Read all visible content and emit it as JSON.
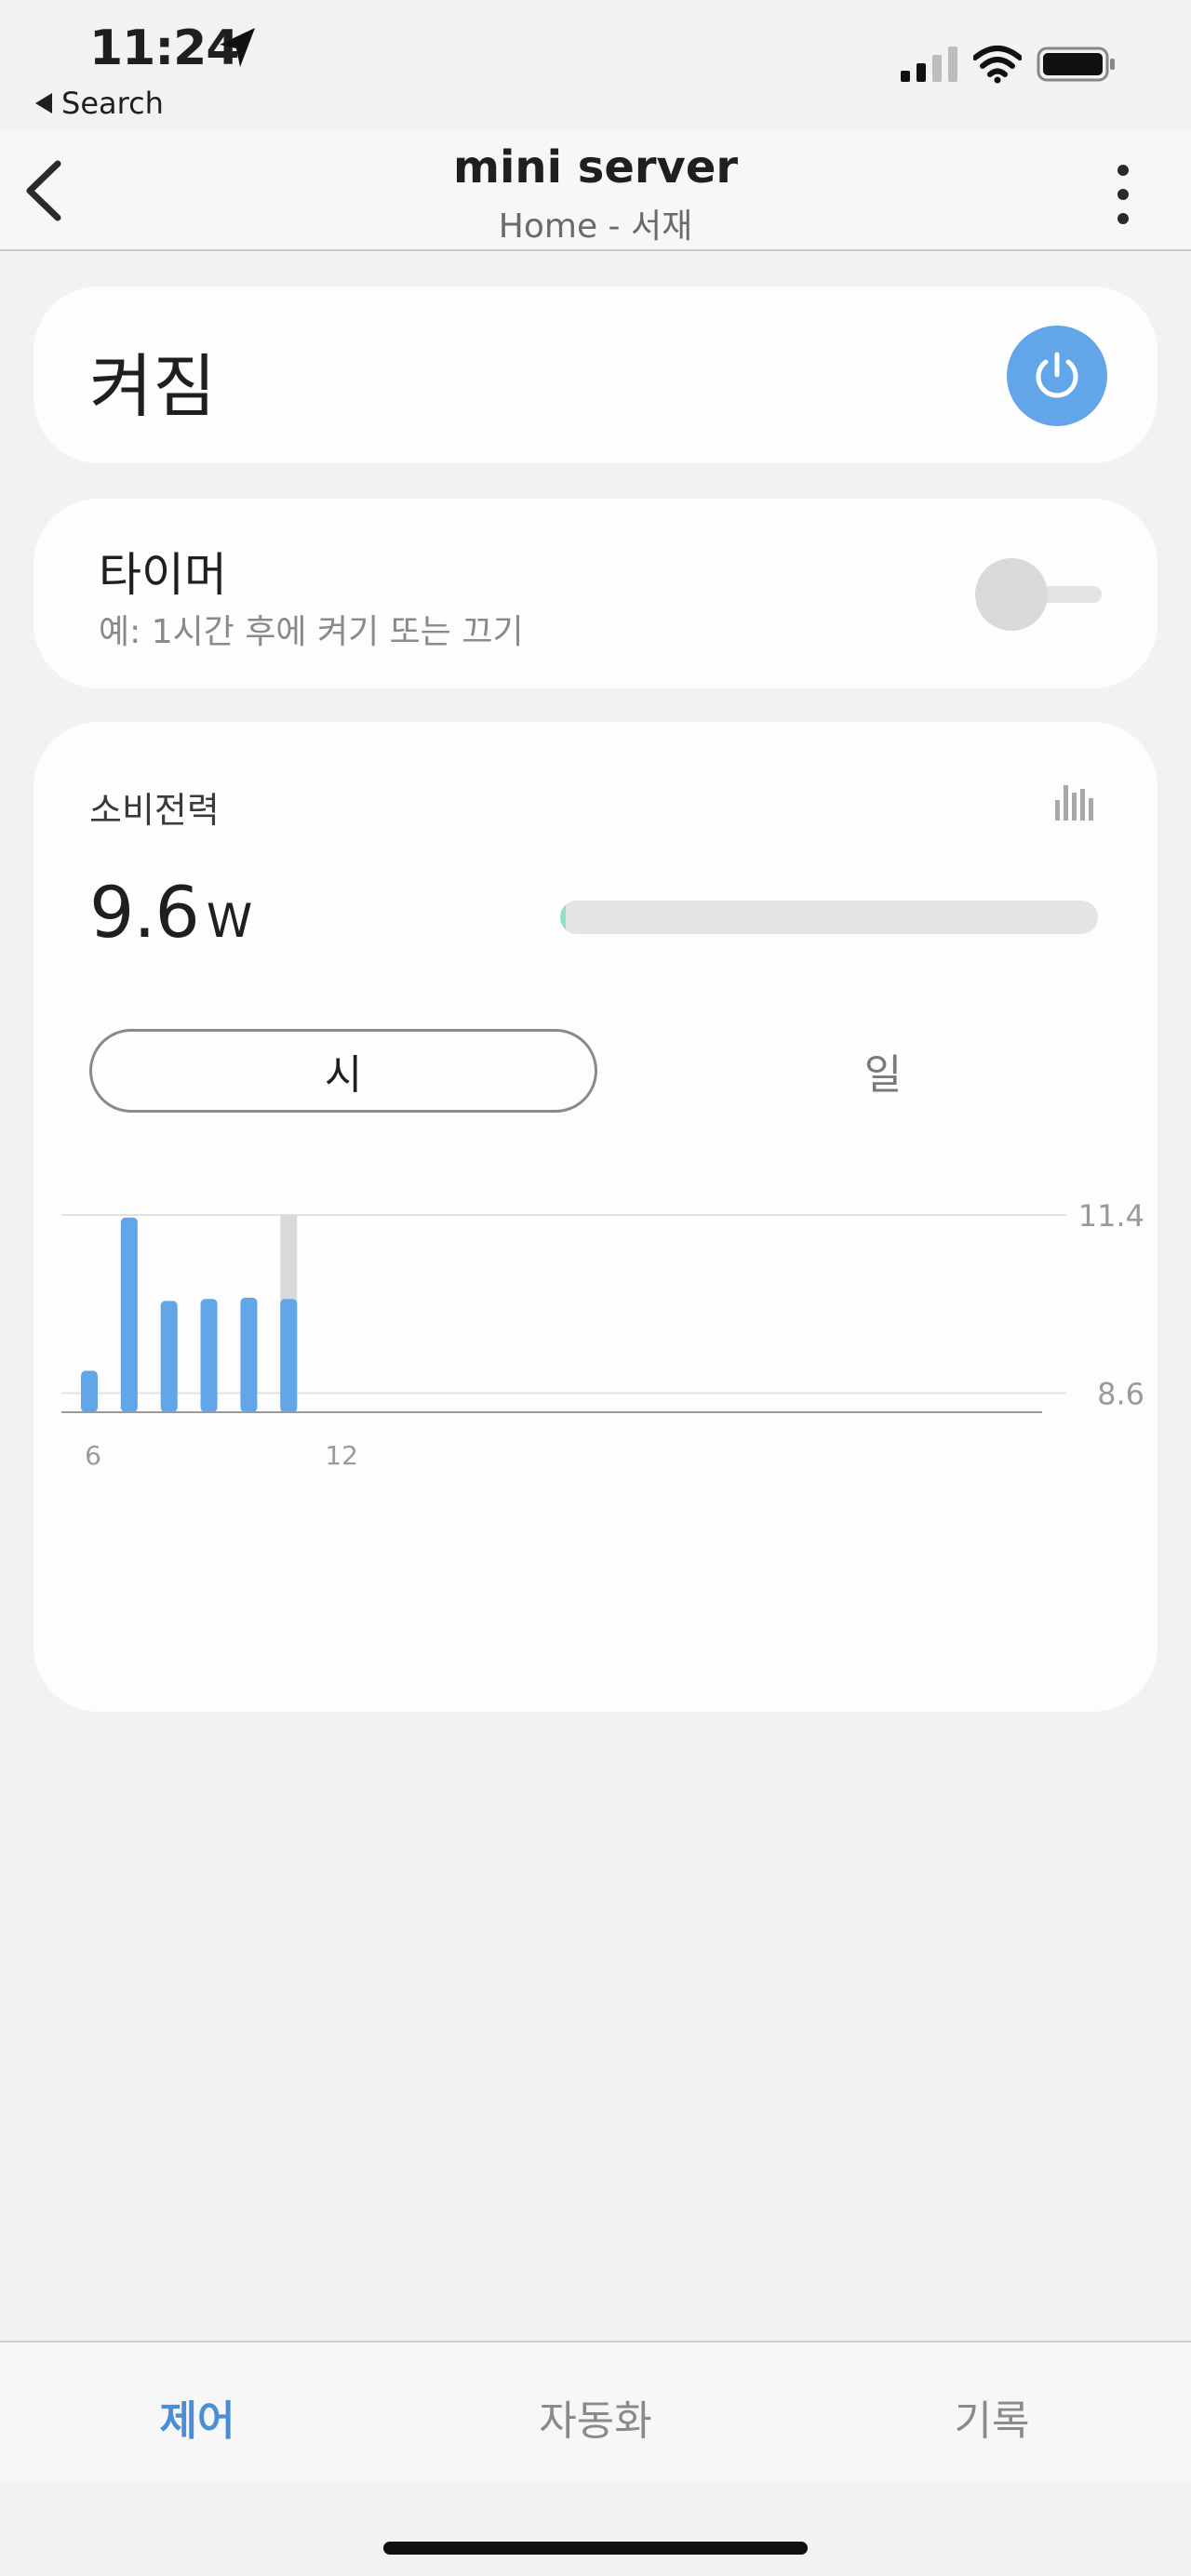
{
  "status_bar": {
    "time": "11:24",
    "back_app": "Search"
  },
  "header": {
    "title": "mini server",
    "subtitle": "Home - 서재"
  },
  "power": {
    "state": "켜짐",
    "accent": "#62a5e8"
  },
  "timer": {
    "title": "타이머",
    "description": "예: 1시간 후에 켜기 또는 끄기",
    "enabled": false
  },
  "energy": {
    "title": "소비전력",
    "value": "9.6",
    "unit": "W",
    "level_fraction": 0.01,
    "tabs": [
      {
        "label": "시",
        "selected": true
      },
      {
        "label": "일",
        "selected": false
      }
    ]
  },
  "chart_data": {
    "type": "bar",
    "x": [
      6,
      7,
      8,
      9,
      10,
      11
    ],
    "values": [
      8.95,
      11.36,
      10.05,
      10.08,
      10.1,
      10.08
    ],
    "highlight_index": 5,
    "y_ticks": [
      "11.4",
      "8.6"
    ],
    "y_tick_values": [
      11.4,
      8.6
    ],
    "x_ticks": [
      "6",
      "12"
    ],
    "x_tick_values": [
      6,
      12
    ],
    "xlim": [
      5.3,
      30.5
    ],
    "ylim": [
      8.3,
      11.4
    ],
    "color": "#62a5e8",
    "grid": true
  },
  "bottom_nav": {
    "items": [
      {
        "label": "제어",
        "active": true
      },
      {
        "label": "자동화",
        "active": false
      },
      {
        "label": "기록",
        "active": false
      }
    ]
  }
}
